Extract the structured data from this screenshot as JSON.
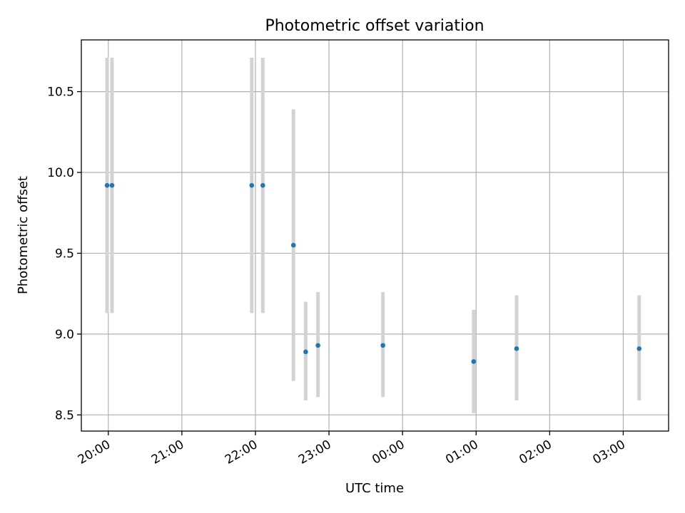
{
  "chart_data": {
    "type": "scatter",
    "title": "Photometric offset variation",
    "xlabel": "UTC time",
    "ylabel": "Photometric offset",
    "x_axis": {
      "type": "time",
      "range": [
        "19:38",
        "03:37"
      ],
      "ticks": [
        "20:00",
        "21:00",
        "22:00",
        "23:00",
        "00:00",
        "01:00",
        "02:00",
        "03:00"
      ]
    },
    "y_axis": {
      "range": [
        8.4,
        10.82
      ],
      "ticks": [
        "8.5",
        "9.0",
        "9.5",
        "10.0",
        "10.5"
      ]
    },
    "grid": true,
    "series": [
      {
        "marker_color": "#1f77b4",
        "errorbar_color": "#d3d3d3",
        "points": [
          {
            "x": "19:59",
            "y": 9.92,
            "yerr_low": 9.13,
            "yerr_high": 10.71
          },
          {
            "x": "20:03",
            "y": 9.92,
            "yerr_low": 9.13,
            "yerr_high": 10.71
          },
          {
            "x": "21:57",
            "y": 9.92,
            "yerr_low": 9.13,
            "yerr_high": 10.71
          },
          {
            "x": "22:06",
            "y": 9.92,
            "yerr_low": 9.13,
            "yerr_high": 10.71
          },
          {
            "x": "22:31",
            "y": 9.55,
            "yerr_low": 8.71,
            "yerr_high": 10.39
          },
          {
            "x": "22:41",
            "y": 8.89,
            "yerr_low": 8.59,
            "yerr_high": 9.2
          },
          {
            "x": "22:51",
            "y": 8.93,
            "yerr_low": 8.61,
            "yerr_high": 9.26
          },
          {
            "x": "23:44",
            "y": 8.93,
            "yerr_low": 8.61,
            "yerr_high": 9.26
          },
          {
            "x": "00:58",
            "y": 8.83,
            "yerr_low": 8.51,
            "yerr_high": 9.15
          },
          {
            "x": "01:33",
            "y": 8.91,
            "yerr_low": 8.59,
            "yerr_high": 9.24
          },
          {
            "x": "03:13",
            "y": 8.91,
            "yerr_low": 8.59,
            "yerr_high": 9.24
          }
        ]
      }
    ]
  }
}
